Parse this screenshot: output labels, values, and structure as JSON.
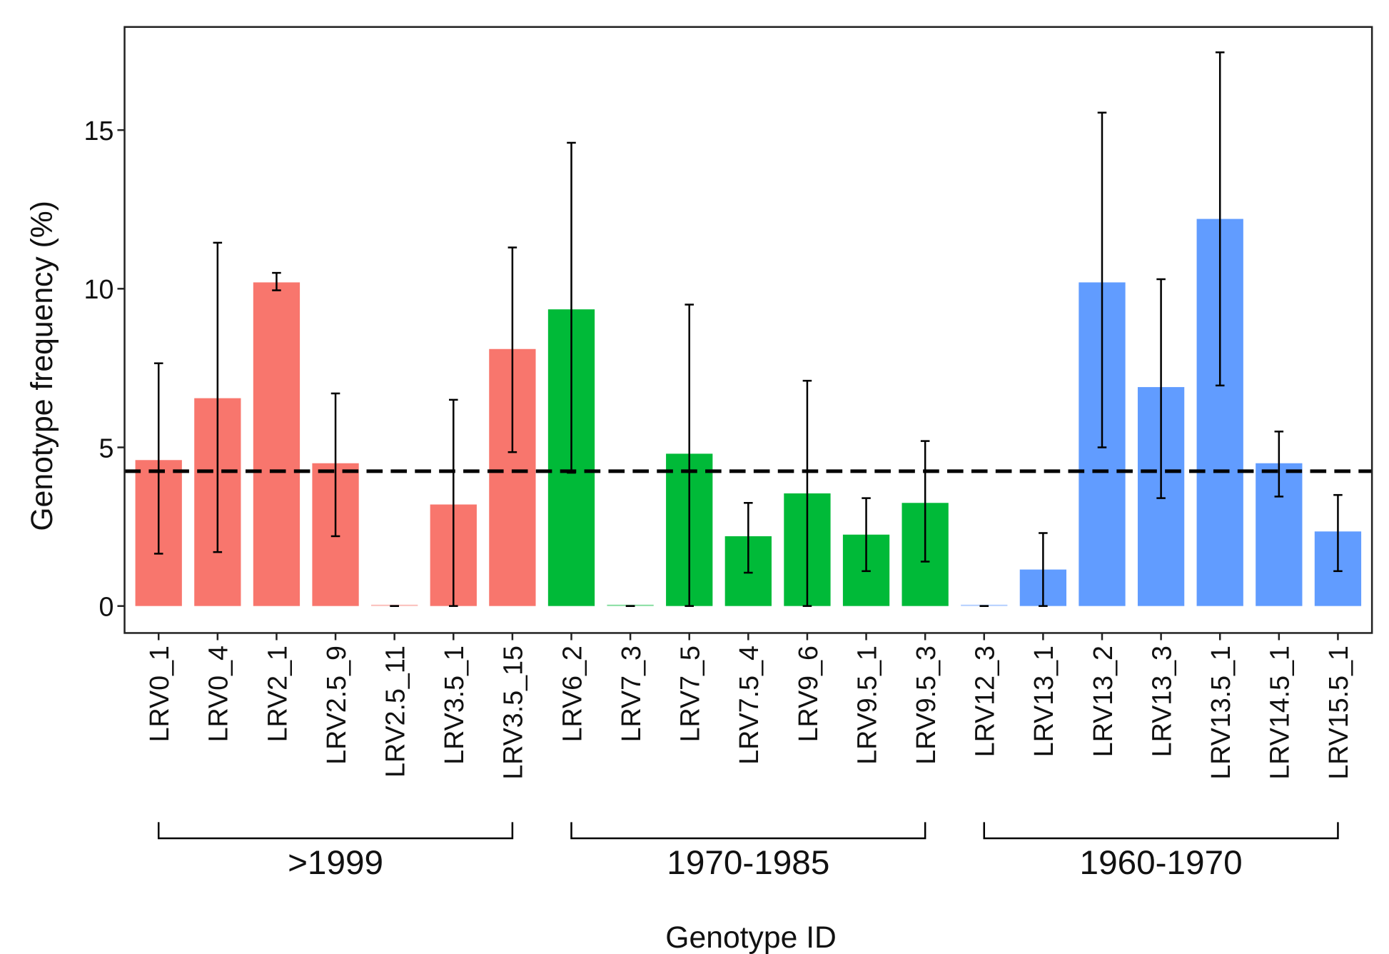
{
  "chart_data": {
    "type": "bar",
    "xlabel": "Genotype ID",
    "ylabel": "Genotype frequency (%)",
    "ylim": [
      -0.85,
      18.25
    ],
    "yticks": [
      0,
      5,
      10,
      15
    ],
    "grid": false,
    "reference_line": {
      "value": 4.25,
      "style": "dashed",
      "color": "#000000"
    },
    "categories": [
      "LRV0_1",
      "LRV0_4",
      "LRV2_1",
      "LRV2.5_9",
      "LRV2.5_11",
      "LRV3.5_1",
      "LRV3.5_15",
      "LRV6_2",
      "LRV7_3",
      "LRV7_5",
      "LRV7.5_4",
      "LRV9_6",
      "LRV9.5_1",
      "LRV9.5_3",
      "LRV12_3",
      "LRV13_1",
      "LRV13_2",
      "LRV13_3",
      "LRV13.5_1",
      "LRV14.5_1",
      "LRV15.5_1"
    ],
    "values": [
      4.6,
      6.55,
      10.2,
      4.5,
      0,
      3.2,
      8.1,
      9.35,
      0,
      4.8,
      2.2,
      3.55,
      2.25,
      3.25,
      0,
      1.15,
      10.2,
      6.9,
      12.2,
      4.5,
      2.35
    ],
    "error_low": [
      1.65,
      1.7,
      9.95,
      2.2,
      0,
      0,
      4.85,
      4.2,
      0,
      0,
      1.05,
      0,
      1.1,
      1.4,
      0,
      0,
      5.0,
      3.4,
      6.95,
      3.45,
      1.1
    ],
    "error_high": [
      7.65,
      11.45,
      10.5,
      6.7,
      0,
      6.5,
      11.3,
      14.6,
      0,
      9.5,
      3.25,
      7.1,
      3.4,
      5.2,
      0,
      2.3,
      15.55,
      10.3,
      17.45,
      5.5,
      3.5
    ],
    "groups": [
      {
        "label": ">1999",
        "first": 0,
        "last": 6,
        "color": "#F8766D"
      },
      {
        "label": "1970-1985",
        "first": 7,
        "last": 13,
        "color": "#00BA38"
      },
      {
        "label": "1960-1970",
        "first": 14,
        "last": 20,
        "color": "#619CFF"
      }
    ]
  }
}
